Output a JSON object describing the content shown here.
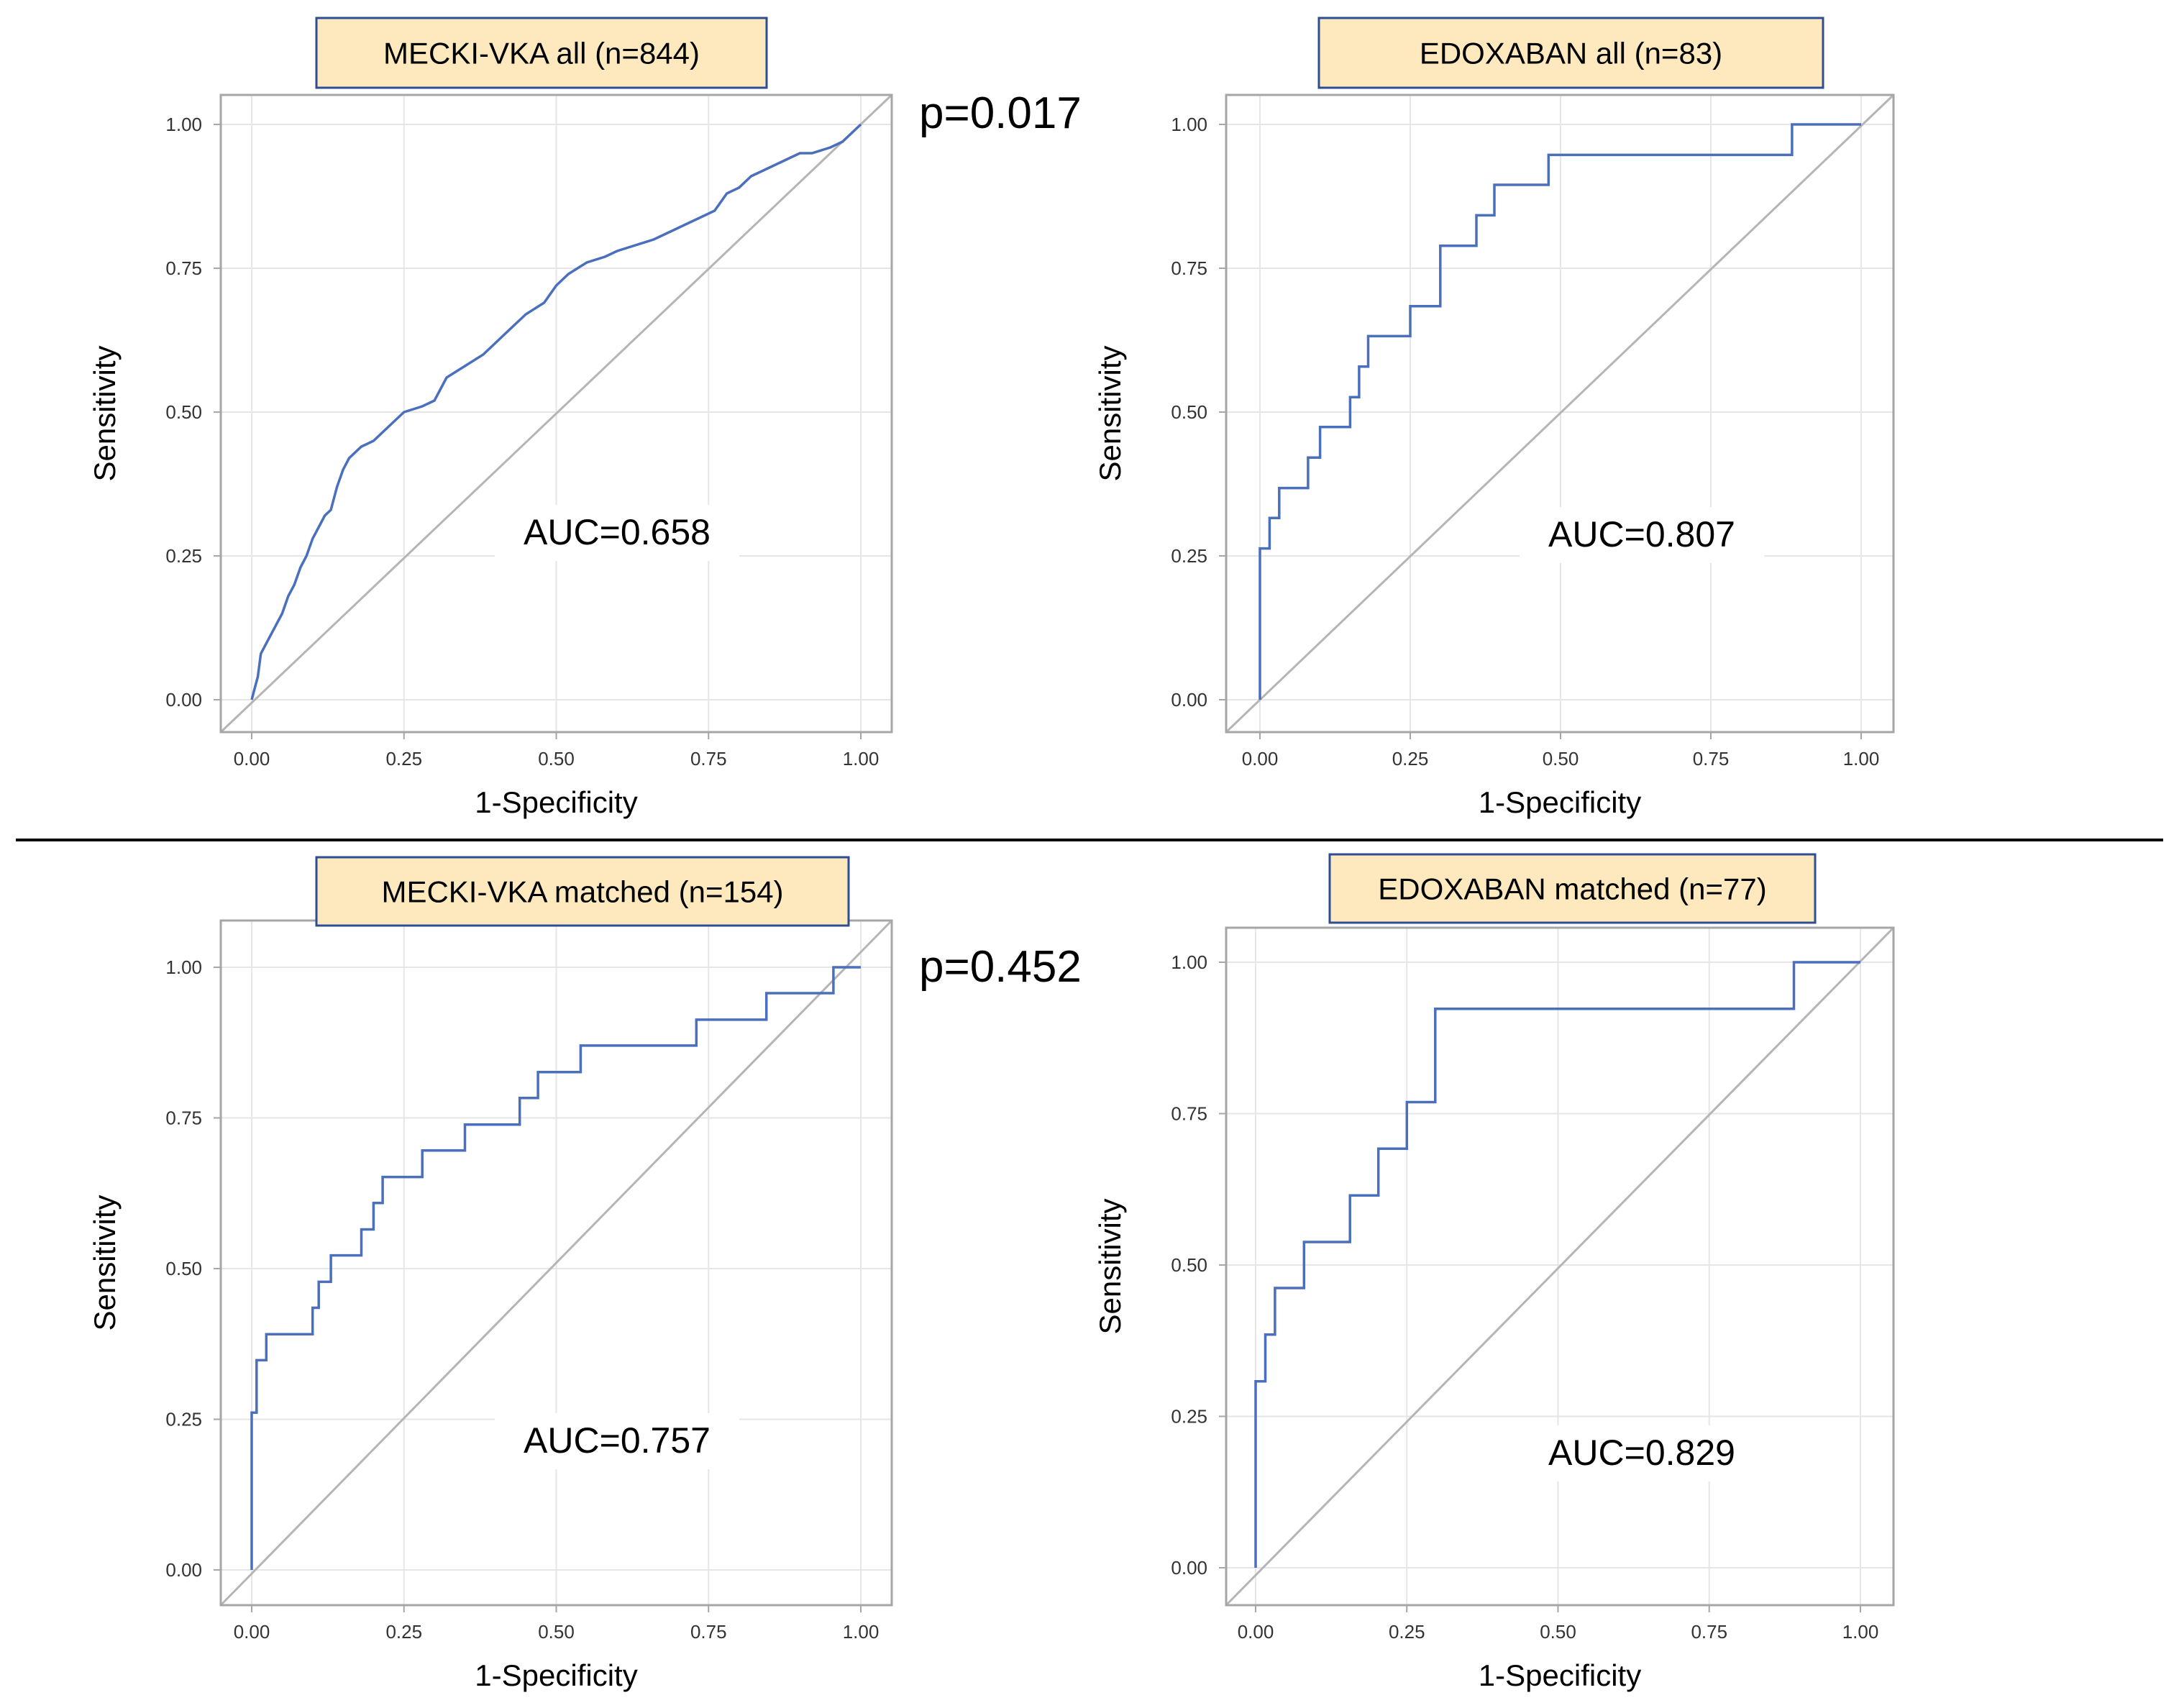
{
  "colors": {
    "curve": "#4a6fbd",
    "diagonal": "#b5b5b5",
    "grid": "#e6e6e6",
    "frame": "#a6a6a6",
    "title_bg": "#fde9bd",
    "title_border": "#2f4d92"
  },
  "p_values": [
    "p=0.017",
    "p=0.452"
  ],
  "chart_data": [
    {
      "type": "line",
      "title": "MECKI-VKA all (n=844)",
      "xlabel": "1-Specificity",
      "ylabel": "Sensitivity",
      "annotation": "AUC=0.658",
      "xlim": [
        0,
        1
      ],
      "ylim": [
        0,
        1
      ],
      "xticks": [
        "0.00",
        "0.25",
        "0.50",
        "0.75",
        "1.00"
      ],
      "yticks": [
        "0.00",
        "0.25",
        "0.50",
        "0.75",
        "1.00"
      ],
      "grid": true,
      "diagonal": true,
      "step": false,
      "series": [
        {
          "name": "ROC",
          "x": [
            0,
            0.005,
            0.01,
            0.015,
            0.02,
            0.03,
            0.04,
            0.05,
            0.06,
            0.07,
            0.08,
            0.09,
            0.1,
            0.11,
            0.12,
            0.13,
            0.14,
            0.15,
            0.16,
            0.18,
            0.2,
            0.22,
            0.25,
            0.28,
            0.3,
            0.32,
            0.35,
            0.38,
            0.4,
            0.42,
            0.45,
            0.48,
            0.5,
            0.52,
            0.55,
            0.58,
            0.6,
            0.63,
            0.66,
            0.68,
            0.7,
            0.72,
            0.74,
            0.76,
            0.78,
            0.8,
            0.82,
            0.84,
            0.86,
            0.88,
            0.9,
            0.92,
            0.95,
            0.97,
            0.99,
            1.0
          ],
          "y": [
            0,
            0.02,
            0.04,
            0.08,
            0.09,
            0.11,
            0.13,
            0.15,
            0.18,
            0.2,
            0.23,
            0.25,
            0.28,
            0.3,
            0.32,
            0.33,
            0.37,
            0.4,
            0.42,
            0.44,
            0.45,
            0.47,
            0.5,
            0.51,
            0.52,
            0.56,
            0.58,
            0.6,
            0.62,
            0.64,
            0.67,
            0.69,
            0.72,
            0.74,
            0.76,
            0.77,
            0.78,
            0.79,
            0.8,
            0.81,
            0.82,
            0.83,
            0.84,
            0.85,
            0.88,
            0.89,
            0.91,
            0.92,
            0.93,
            0.94,
            0.95,
            0.95,
            0.96,
            0.97,
            0.99,
            1.0
          ]
        }
      ]
    },
    {
      "type": "line",
      "title": "EDOXABAN all (n=83)",
      "xlabel": "1-Specificity",
      "ylabel": "Sensitivity",
      "annotation": "AUC=0.807",
      "xlim": [
        0,
        1
      ],
      "ylim": [
        0,
        1
      ],
      "xticks": [
        "0.00",
        "0.25",
        "0.50",
        "0.75",
        "1.00"
      ],
      "yticks": [
        "0.00",
        "0.25",
        "0.50",
        "0.75",
        "1.00"
      ],
      "grid": true,
      "diagonal": true,
      "step": true,
      "series": [
        {
          "name": "ROC",
          "x": [
            0,
            0,
            0.016,
            0.032,
            0.08,
            0.1,
            0.15,
            0.165,
            0.18,
            0.25,
            0.3,
            0.36,
            0.39,
            0.48,
            0.885,
            1.0
          ],
          "y": [
            0,
            0.263,
            0.316,
            0.368,
            0.421,
            0.474,
            0.526,
            0.579,
            0.632,
            0.684,
            0.789,
            0.842,
            0.895,
            0.947,
            1.0,
            1.0
          ]
        }
      ]
    },
    {
      "type": "line",
      "title": "MECKI-VKA matched (n=154)",
      "xlabel": "1-Specificity",
      "ylabel": "Sensitivity",
      "annotation": "AUC=0.757",
      "xlim": [
        0,
        1
      ],
      "ylim": [
        0,
        1
      ],
      "xticks": [
        "0.00",
        "0.25",
        "0.50",
        "0.75",
        "1.00"
      ],
      "yticks": [
        "0.00",
        "0.25",
        "0.50",
        "0.75",
        "1.00"
      ],
      "grid": true,
      "diagonal": true,
      "step": true,
      "series": [
        {
          "name": "ROC",
          "x": [
            0,
            0,
            0.008,
            0.024,
            0.1,
            0.11,
            0.13,
            0.18,
            0.2,
            0.215,
            0.28,
            0.35,
            0.44,
            0.47,
            0.54,
            0.73,
            0.845,
            0.955,
            1.0
          ],
          "y": [
            0,
            0.261,
            0.348,
            0.391,
            0.435,
            0.478,
            0.522,
            0.565,
            0.609,
            0.652,
            0.696,
            0.739,
            0.783,
            0.826,
            0.87,
            0.913,
            0.957,
            1.0,
            1.0
          ]
        }
      ]
    },
    {
      "type": "line",
      "title": "EDOXABAN matched (n=77)",
      "xlabel": "1-Specificity",
      "ylabel": "Sensitivity",
      "annotation": "AUC=0.829",
      "xlim": [
        0,
        1
      ],
      "ylim": [
        0,
        1
      ],
      "xticks": [
        "0.00",
        "0.25",
        "0.50",
        "0.75",
        "1.00"
      ],
      "yticks": [
        "0.00",
        "0.25",
        "0.50",
        "0.75",
        "1.00"
      ],
      "grid": true,
      "diagonal": true,
      "step": true,
      "series": [
        {
          "name": "ROC",
          "x": [
            0,
            0,
            0.016,
            0.032,
            0.08,
            0.156,
            0.203,
            0.25,
            0.297,
            0.89,
            1.0
          ],
          "y": [
            0,
            0.308,
            0.385,
            0.462,
            0.538,
            0.615,
            0.692,
            0.769,
            0.923,
            1.0,
            1.0
          ]
        }
      ]
    }
  ]
}
